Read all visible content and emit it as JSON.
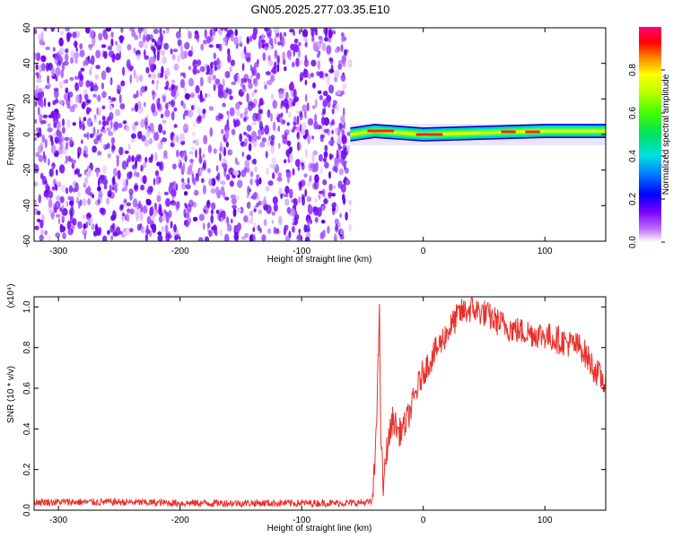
{
  "title": "GN05.2025.277.03.35.E10",
  "chart_data": [
    {
      "type": "heatmap",
      "xlabel": "Height of straight line (km)",
      "ylabel": "Frequency (Hz)",
      "xlim": [
        -320,
        150
      ],
      "ylim": [
        -60,
        60
      ],
      "xticks": [
        -300,
        -200,
        -100,
        0,
        100
      ],
      "yticks": [
        -60,
        -40,
        -20,
        0,
        20,
        40,
        60
      ],
      "noise_region_x": [
        -320,
        -60
      ],
      "signal_band": [
        {
          "x": -60,
          "freq": 0
        },
        {
          "x": -50,
          "freq": 1
        },
        {
          "x": -40,
          "freq": 2
        },
        {
          "x": -20,
          "freq": 1
        },
        {
          "x": 0,
          "freq": 0
        },
        {
          "x": 50,
          "freq": 1
        },
        {
          "x": 100,
          "freq": 2
        },
        {
          "x": 150,
          "freq": 2
        }
      ],
      "colorbar": {
        "label": "Normalized spectral amplitude",
        "range": [
          0,
          1
        ],
        "ticks": [
          0.0,
          0.2,
          0.4,
          0.6,
          0.8
        ]
      }
    },
    {
      "type": "line",
      "xlabel": "Height of straight line (km)",
      "ylabel": "SNR (10 * v/v)",
      "ymultiplier": "(x10⁴)",
      "xlim": [
        -320,
        150
      ],
      "ylim": [
        0,
        1.05
      ],
      "xticks": [
        -300,
        -200,
        -100,
        0,
        100
      ],
      "yticks": [
        0.0,
        0.2,
        0.4,
        0.6,
        0.8,
        1.0
      ],
      "series": [
        {
          "color": "#e8302a",
          "x": [
            -320,
            -250,
            -200,
            -150,
            -100,
            -60,
            -42,
            -40,
            -38,
            -36,
            -35,
            -33,
            -30,
            -25,
            -20,
            -15,
            -10,
            -5,
            0,
            10,
            20,
            30,
            40,
            50,
            60,
            70,
            80,
            90,
            100,
            110,
            120,
            130,
            140,
            150
          ],
          "y": [
            0.04,
            0.04,
            0.035,
            0.035,
            0.035,
            0.035,
            0.04,
            0.2,
            0.55,
            0.95,
            0.4,
            0.1,
            0.3,
            0.45,
            0.38,
            0.42,
            0.5,
            0.6,
            0.68,
            0.78,
            0.88,
            0.97,
            0.99,
            0.97,
            0.93,
            0.9,
            0.88,
            0.87,
            0.86,
            0.84,
            0.82,
            0.8,
            0.7,
            0.62
          ]
        }
      ]
    }
  ]
}
